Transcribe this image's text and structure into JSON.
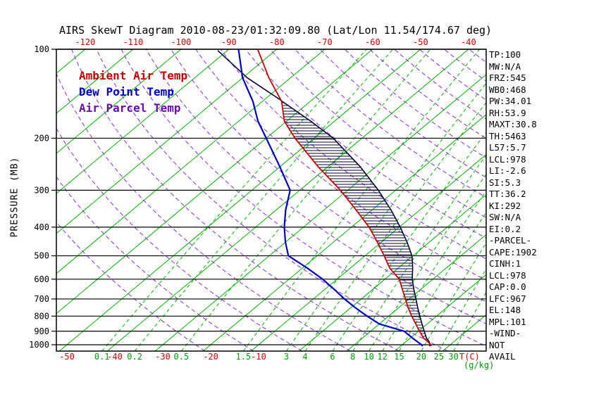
{
  "title": "AIRS SkewT Diagram 2010-08-23/01:32:09.80 (Lat/Lon 11.54/174.67 deg)",
  "colors": {
    "isotherm": "#00b400",
    "mixing_ratio": "#00b400",
    "dry_adiabat": "#8a2be2",
    "pressure_line": "#000000",
    "frame": "#000000",
    "top_axis_label": "#dd0000",
    "bottom_temp_label": "#dd0000",
    "mixing_label": "#00a000",
    "hatch": "#000033",
    "text": "#000000"
  },
  "legend": {
    "items": [
      {
        "label": "Ambient Air Temp",
        "color": "#cc0000"
      },
      {
        "label": "Dew Point Temp",
        "color": "#0000cc"
      },
      {
        "label": "Air Parcel Temp",
        "color": "#6a0dad"
      }
    ]
  },
  "stats_panel": {
    "lines": [
      "TP:100",
      "MW:N/A",
      "FRZ:545",
      "WB0:468",
      "PW:34.01",
      "RH:53.9",
      "MAXT:30.8",
      "TH:5463",
      "L57:5.7",
      "LCL:978",
      "LI:-2.6",
      "SI:5.3",
      "TT:36.2",
      "KI:292",
      "SW:N/A",
      "EI:0.2",
      "-PARCEL-",
      "CAPE:1902",
      "CINH:1",
      "LCL:978",
      "CAP:0.0",
      "LFC:967",
      "EL:148",
      "MPL:101",
      "-WIND-",
      "NOT",
      "AVAIL"
    ]
  },
  "chart_data": {
    "type": "line",
    "subtype": "skew-t-log-p",
    "title": "AIRS SkewT Diagram 2010-08-23/01:32:09.80 (Lat/Lon 11.54/174.67 deg)",
    "pressure_axis": {
      "label": "PRESSURE (MB)",
      "ticks": [
        100,
        200,
        300,
        400,
        500,
        600,
        700,
        800,
        900,
        1000
      ],
      "top_mb": 100,
      "bottom_mb": 1050
    },
    "top_temp_ticks_c": [
      -120,
      -110,
      -100,
      -90,
      -80,
      -70,
      -60,
      -50,
      -40
    ],
    "bottom_temp_ticks_c": [
      -50,
      -40,
      -30,
      -20,
      -10
    ],
    "temp_unit_label": "T(C)",
    "mixing_ratio_unit_label": "(g/kg)",
    "mixing_ratio_lines_gkg": [
      0.1,
      0.2,
      0.5,
      1.5,
      3,
      4,
      6,
      8,
      10,
      12,
      15,
      20,
      25,
      30
    ],
    "isotherms_c": {
      "min": -120,
      "max": 30,
      "step": 10
    },
    "dry_adiabats_k": {
      "min": 250,
      "max": 450,
      "step": 10
    },
    "series": [
      {
        "name": "Ambient Air Temp",
        "color": "#cc0000",
        "points_p_t": [
          [
            1010,
            26.3
          ],
          [
            1000,
            26.0
          ],
          [
            950,
            22.8
          ],
          [
            900,
            20.2
          ],
          [
            850,
            17.6
          ],
          [
            800,
            14.8
          ],
          [
            750,
            12.0
          ],
          [
            700,
            9.2
          ],
          [
            650,
            6.2
          ],
          [
            600,
            3.0
          ],
          [
            550,
            -1.8
          ],
          [
            500,
            -6.0
          ],
          [
            450,
            -10.8
          ],
          [
            400,
            -16.3
          ],
          [
            350,
            -23.3
          ],
          [
            300,
            -31.5
          ],
          [
            250,
            -42.0
          ],
          [
            200,
            -54.0
          ],
          [
            175,
            -60.5
          ],
          [
            150,
            -66.0
          ],
          [
            125,
            -74.5
          ],
          [
            100,
            -84.0
          ]
        ]
      },
      {
        "name": "Dew Point Temp",
        "color": "#0000cc",
        "points_p_t": [
          [
            1010,
            24.6
          ],
          [
            1000,
            24.0
          ],
          [
            950,
            20.5
          ],
          [
            900,
            17.0
          ],
          [
            850,
            10.0
          ],
          [
            800,
            5.5
          ],
          [
            750,
            1.0
          ],
          [
            700,
            -3.5
          ],
          [
            650,
            -8.0
          ],
          [
            600,
            -13.0
          ],
          [
            550,
            -19.0
          ],
          [
            500,
            -26.0
          ],
          [
            450,
            -30.0
          ],
          [
            400,
            -34.0
          ],
          [
            350,
            -38.0
          ],
          [
            300,
            -42.0
          ],
          [
            250,
            -50.0
          ],
          [
            200,
            -60.0
          ],
          [
            175,
            -66.0
          ],
          [
            150,
            -72.0
          ],
          [
            125,
            -80.0
          ],
          [
            100,
            -88.0
          ]
        ]
      },
      {
        "name": "Air Parcel Temp",
        "color": "#000033",
        "points_p_t": [
          [
            1010,
            26.0
          ],
          [
            1000,
            25.8
          ],
          [
            978,
            24.9
          ],
          [
            950,
            23.4
          ],
          [
            900,
            21.2
          ],
          [
            850,
            18.9
          ],
          [
            800,
            16.5
          ],
          [
            750,
            14.0
          ],
          [
            700,
            11.4
          ],
          [
            650,
            8.6
          ],
          [
            600,
            5.7
          ],
          [
            550,
            3.0
          ],
          [
            500,
            -0.2
          ],
          [
            450,
            -4.6
          ],
          [
            400,
            -9.8
          ],
          [
            350,
            -16.0
          ],
          [
            300,
            -23.6
          ],
          [
            250,
            -33.2
          ],
          [
            200,
            -46.0
          ],
          [
            175,
            -55.0
          ],
          [
            150,
            -65.9
          ],
          [
            148,
            -66.8
          ],
          [
            125,
            -79.0
          ],
          [
            101,
            -92.0
          ]
        ]
      }
    ],
    "cape_hatch": {
      "from_mb": 967,
      "to_mb": 148
    }
  }
}
